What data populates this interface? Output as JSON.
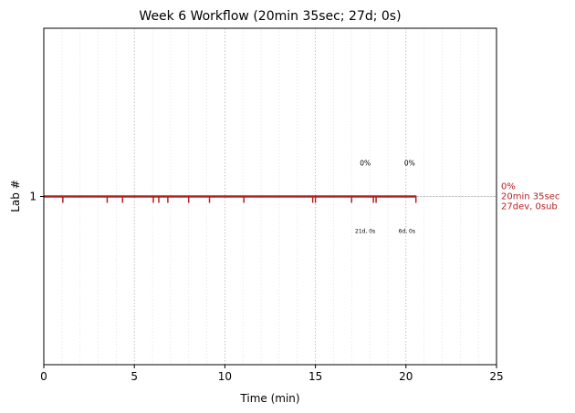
{
  "chart_data": {
    "type": "line",
    "title": "Week 6 Workflow (20min 35sec; 27d; 0s)",
    "xlabel": "Time (min)",
    "ylabel": "Lab #",
    "xlim": [
      0,
      25
    ],
    "ylim": [
      0,
      2
    ],
    "x_ticks": [
      0,
      5,
      10,
      15,
      20,
      25
    ],
    "x_tick_labels": [
      "0",
      "5",
      "10",
      "15",
      "20",
      "25"
    ],
    "y_ticks": [
      1
    ],
    "y_tick_labels": [
      "1"
    ],
    "grid": true,
    "series": [
      {
        "lab": 1,
        "start": 0,
        "end": 20.58,
        "events": [
          1.05,
          3.5,
          4.35,
          6.05,
          6.35,
          6.85,
          8.0,
          9.15,
          11.05,
          14.85,
          15.0,
          17.0,
          18.2,
          18.35,
          20.55
        ],
        "end_labels": [
          "0%",
          "20min 35sec",
          "27dev, 0sub"
        ]
      }
    ],
    "annotations": [
      {
        "x": 17.75,
        "y": 1.2,
        "text": "0%",
        "position": "above"
      },
      {
        "x": 20.2,
        "y": 1.2,
        "text": "0%",
        "position": "above"
      },
      {
        "x": 17.75,
        "y": 0.8,
        "text": "21d, 0s",
        "position": "below"
      },
      {
        "x": 20.05,
        "y": 0.8,
        "text": "6d, 0s",
        "position": "below"
      }
    ],
    "colors": {
      "series": "#b22222",
      "label": "#b22222",
      "grid": "#b0b0b0",
      "minor_grid": "#e6e6e6"
    }
  }
}
